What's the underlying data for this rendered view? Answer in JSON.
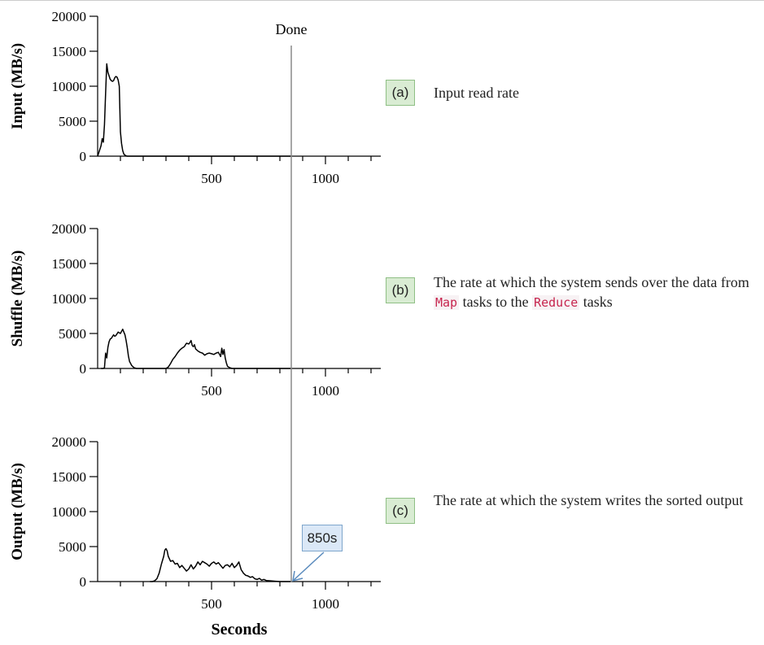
{
  "chart_data": [
    {
      "type": "line",
      "panel_tag": "(a)",
      "description": "Input read rate",
      "ylabel": "Input (MB/s)",
      "ylim": [
        0,
        20000
      ],
      "xlim": [
        0,
        1250
      ],
      "yticks": [
        0,
        5000,
        10000,
        15000,
        20000
      ],
      "xtick_labels": [
        500,
        1000
      ],
      "x": [
        0,
        15,
        20,
        25,
        30,
        35,
        40,
        45,
        50,
        55,
        60,
        65,
        70,
        75,
        80,
        85,
        90,
        95,
        100,
        105,
        110,
        115,
        120,
        125,
        130,
        140,
        150,
        160,
        200,
        300,
        500,
        850
      ],
      "values": [
        0,
        1500,
        2500,
        2000,
        4500,
        9000,
        13200,
        12000,
        11500,
        11000,
        10800,
        10700,
        10800,
        11200,
        11400,
        11300,
        10900,
        10000,
        3500,
        1800,
        800,
        300,
        150,
        50,
        0,
        0,
        0,
        0,
        0,
        0,
        0,
        0
      ]
    },
    {
      "type": "line",
      "panel_tag": "(b)",
      "description": "The rate at which the system sends over the data from Map tasks to the Reduce tasks",
      "description_parts": [
        "The rate at which the system sends over the data from ",
        "Map",
        " tasks to the ",
        "Reduce",
        " tasks"
      ],
      "ylabel": "Shuffle (MB/s)",
      "ylim": [
        0,
        20000
      ],
      "xlim": [
        0,
        1250
      ],
      "yticks": [
        0,
        5000,
        10000,
        15000,
        20000
      ],
      "xtick_labels": [
        500,
        1000
      ],
      "x": [
        15,
        25,
        30,
        35,
        40,
        45,
        50,
        55,
        60,
        70,
        75,
        80,
        90,
        100,
        110,
        120,
        125,
        130,
        135,
        140,
        150,
        160,
        170,
        180,
        190,
        200,
        210,
        220,
        240,
        260,
        280,
        300,
        310,
        320,
        330,
        340,
        350,
        360,
        370,
        380,
        390,
        400,
        405,
        410,
        415,
        420,
        425,
        430,
        440,
        450,
        460,
        470,
        480,
        490,
        500,
        510,
        520,
        530,
        540,
        545,
        550,
        555,
        560,
        565,
        570,
        580,
        590,
        600,
        620,
        650,
        700,
        800,
        850
      ],
      "values": [
        0,
        0,
        100,
        2200,
        1500,
        3000,
        3800,
        4200,
        4300,
        4800,
        4600,
        4700,
        5200,
        5000,
        5600,
        4800,
        4000,
        3000,
        1800,
        1000,
        400,
        100,
        0,
        0,
        0,
        0,
        0,
        0,
        0,
        0,
        0,
        0,
        200,
        700,
        1300,
        1700,
        2200,
        2600,
        2900,
        3100,
        3600,
        3500,
        3700,
        4000,
        3300,
        3100,
        3400,
        2800,
        2500,
        2300,
        2200,
        1900,
        2100,
        2200,
        2100,
        2000,
        2200,
        2300,
        1700,
        2900,
        2000,
        2700,
        1500,
        800,
        300,
        100,
        0,
        0,
        0,
        0,
        0,
        0,
        0
      ]
    },
    {
      "type": "line",
      "panel_tag": "(c)",
      "description": "The rate at which the system writes the sorted output",
      "ylabel": "Output (MB/s)",
      "xlabel": "Seconds",
      "ylim": [
        0,
        20000
      ],
      "xlim": [
        0,
        1250
      ],
      "yticks": [
        0,
        5000,
        10000,
        15000,
        20000
      ],
      "xtick_labels": [
        500,
        1000
      ],
      "x": [
        230,
        240,
        250,
        260,
        270,
        280,
        290,
        295,
        300,
        305,
        310,
        320,
        330,
        340,
        350,
        360,
        370,
        380,
        390,
        400,
        410,
        420,
        430,
        440,
        450,
        460,
        470,
        480,
        490,
        500,
        510,
        520,
        530,
        540,
        550,
        560,
        570,
        580,
        590,
        600,
        610,
        620,
        630,
        640,
        650,
        660,
        670,
        680,
        690,
        700,
        710,
        720,
        730,
        740,
        760,
        780,
        800,
        850
      ],
      "values": [
        0,
        0,
        100,
        400,
        1200,
        2500,
        3600,
        4500,
        4700,
        4400,
        3600,
        2900,
        3000,
        2500,
        2600,
        2000,
        2300,
        1900,
        1500,
        1800,
        2400,
        1800,
        2200,
        2800,
        2400,
        2900,
        2700,
        2500,
        2200,
        2600,
        2800,
        2500,
        2700,
        2300,
        1900,
        2300,
        2400,
        2100,
        2600,
        2000,
        2300,
        2800,
        1700,
        1200,
        900,
        800,
        600,
        700,
        400,
        300,
        450,
        200,
        300,
        150,
        100,
        50,
        0,
        0
      ]
    }
  ],
  "done_marker": {
    "label": "Done",
    "x": 850
  },
  "callout": {
    "label": "850s",
    "x": 850
  }
}
